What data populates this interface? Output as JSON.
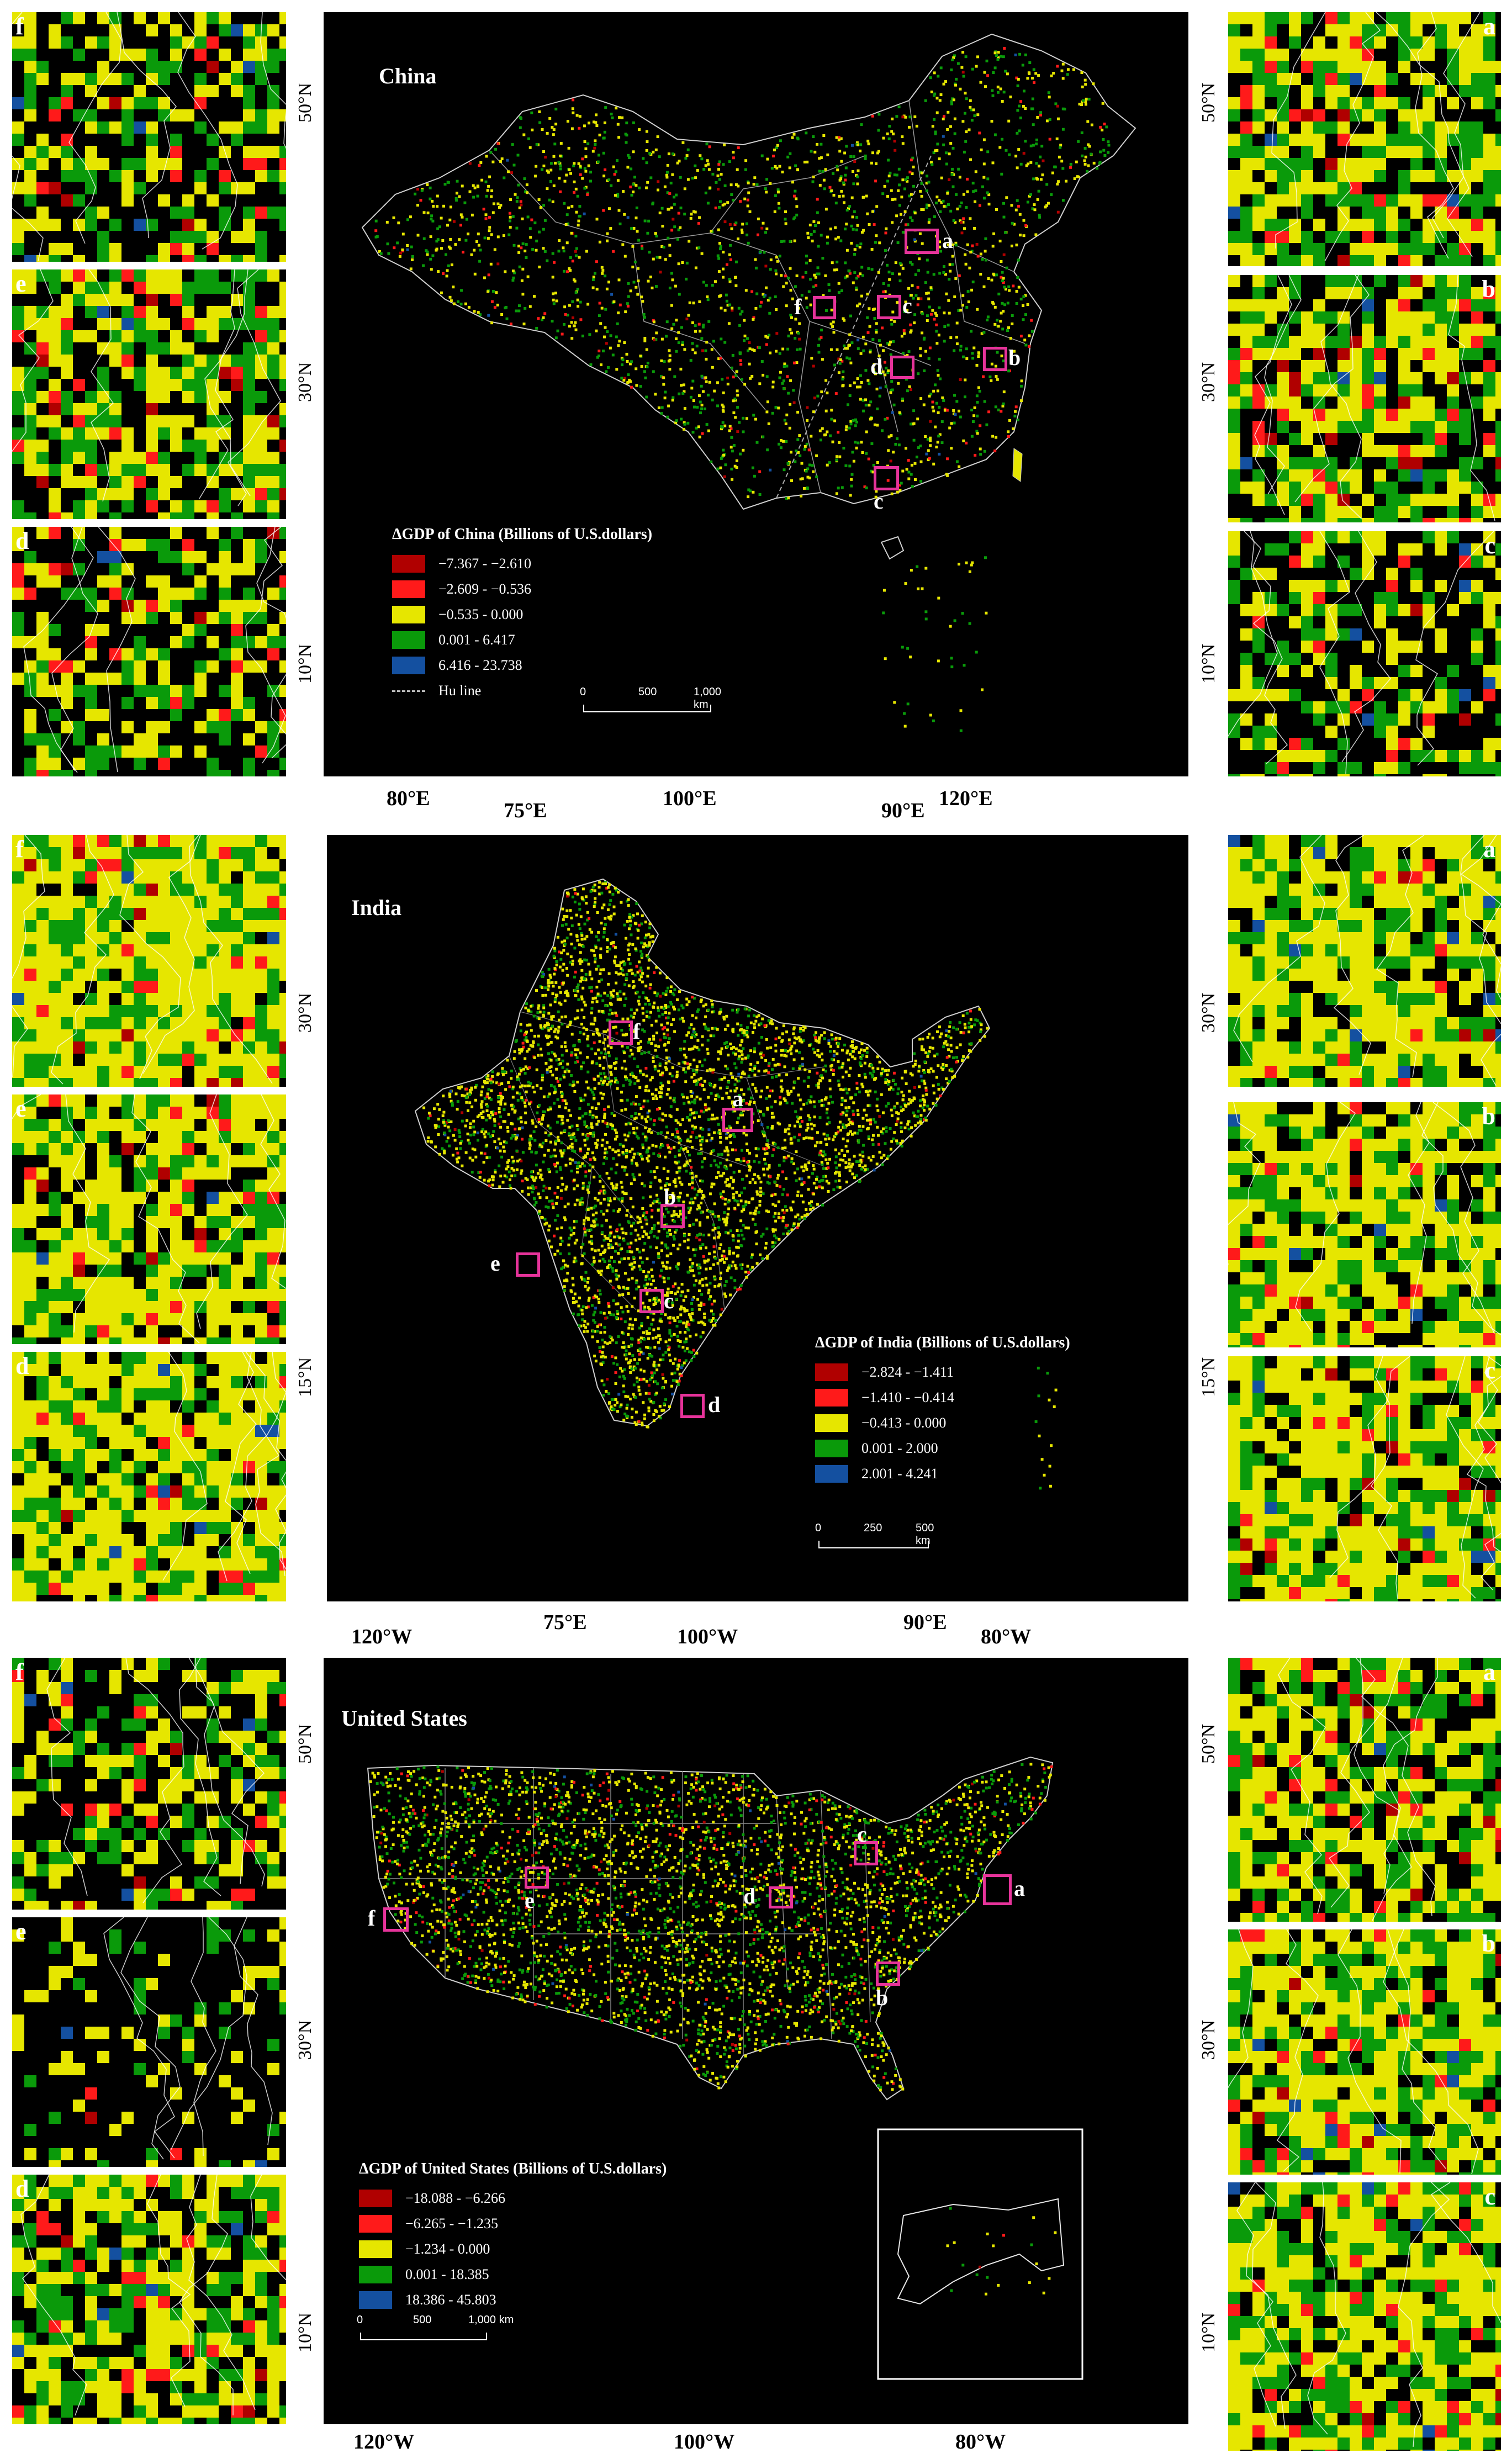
{
  "colors": {
    "class1": "#b00000",
    "class2": "#ff1a1a",
    "class3": "#e6e600",
    "class4": "#0a9a0a",
    "class5": "#1450a0",
    "roi": "#e6339a"
  },
  "china": {
    "title": "China",
    "legend_title": "ΔGDP of China (Billions of U.S.dollars)",
    "classes": [
      "−7.367 - −2.610",
      "−2.609 - −0.536",
      "−0.535 - 0.000",
      "0.001 - 6.417",
      "6.416 - 23.738"
    ],
    "hu_line_label": "Hu line",
    "scale": [
      "0",
      "500",
      "1,000 km"
    ],
    "box_labels": [
      "a",
      "b",
      "c",
      "d",
      "f",
      "c"
    ],
    "left_tiles": [
      "f",
      "e",
      "d"
    ],
    "right_tiles": [
      "a",
      "b",
      "c"
    ],
    "lat_left": [
      "50°N",
      "30°N",
      "10°N"
    ],
    "lat_right": [
      "50°N",
      "30°N",
      "10°N"
    ],
    "lon_labels": [
      "80°E",
      "100°E",
      "120°E"
    ],
    "lon_labels_overlap": [
      "75°E",
      "90°E"
    ]
  },
  "india": {
    "title": "India",
    "legend_title": "ΔGDP of India (Billions of U.S.dollars)",
    "classes": [
      "−2.824 - −1.411",
      "−1.410 - −0.414",
      "−0.413 - 0.000",
      "0.001 - 2.000",
      "2.001 - 4.241"
    ],
    "scale": [
      "0",
      "250",
      "500 km"
    ],
    "box_labels": [
      "f",
      "a",
      "b",
      "e",
      "c",
      "d"
    ],
    "left_tiles": [
      "f",
      "e",
      "d"
    ],
    "right_tiles": [
      "a",
      "b",
      "c"
    ],
    "lat_left": [
      "30°N",
      "15°N"
    ],
    "lat_right": [
      "30°N",
      "15°N"
    ],
    "lon_labels": [
      "75°E",
      "90°E"
    ],
    "lon_labels_overlap": [
      "120°W",
      "100°W",
      "80°W"
    ]
  },
  "usa": {
    "title": "United States",
    "legend_title": "ΔGDP of United States (Billions of U.S.dollars)",
    "classes": [
      "−18.088 - −6.266",
      "−6.265 - −1.235",
      "−1.234 - 0.000",
      "0.001 - 18.385",
      "18.386 - 45.803"
    ],
    "scale": [
      "0",
      "500",
      "1,000 km"
    ],
    "box_labels": [
      "c",
      "d",
      "e",
      "f",
      "a",
      "b"
    ],
    "left_tiles": [
      "f",
      "e",
      "d"
    ],
    "right_tiles": [
      "a",
      "b",
      "c"
    ],
    "lat_left": [
      "50°N",
      "30°N",
      "10°N"
    ],
    "lat_right": [
      "50°N",
      "30°N",
      "10°N"
    ],
    "lon_labels": [
      "120°W",
      "100°W",
      "80°W"
    ]
  }
}
